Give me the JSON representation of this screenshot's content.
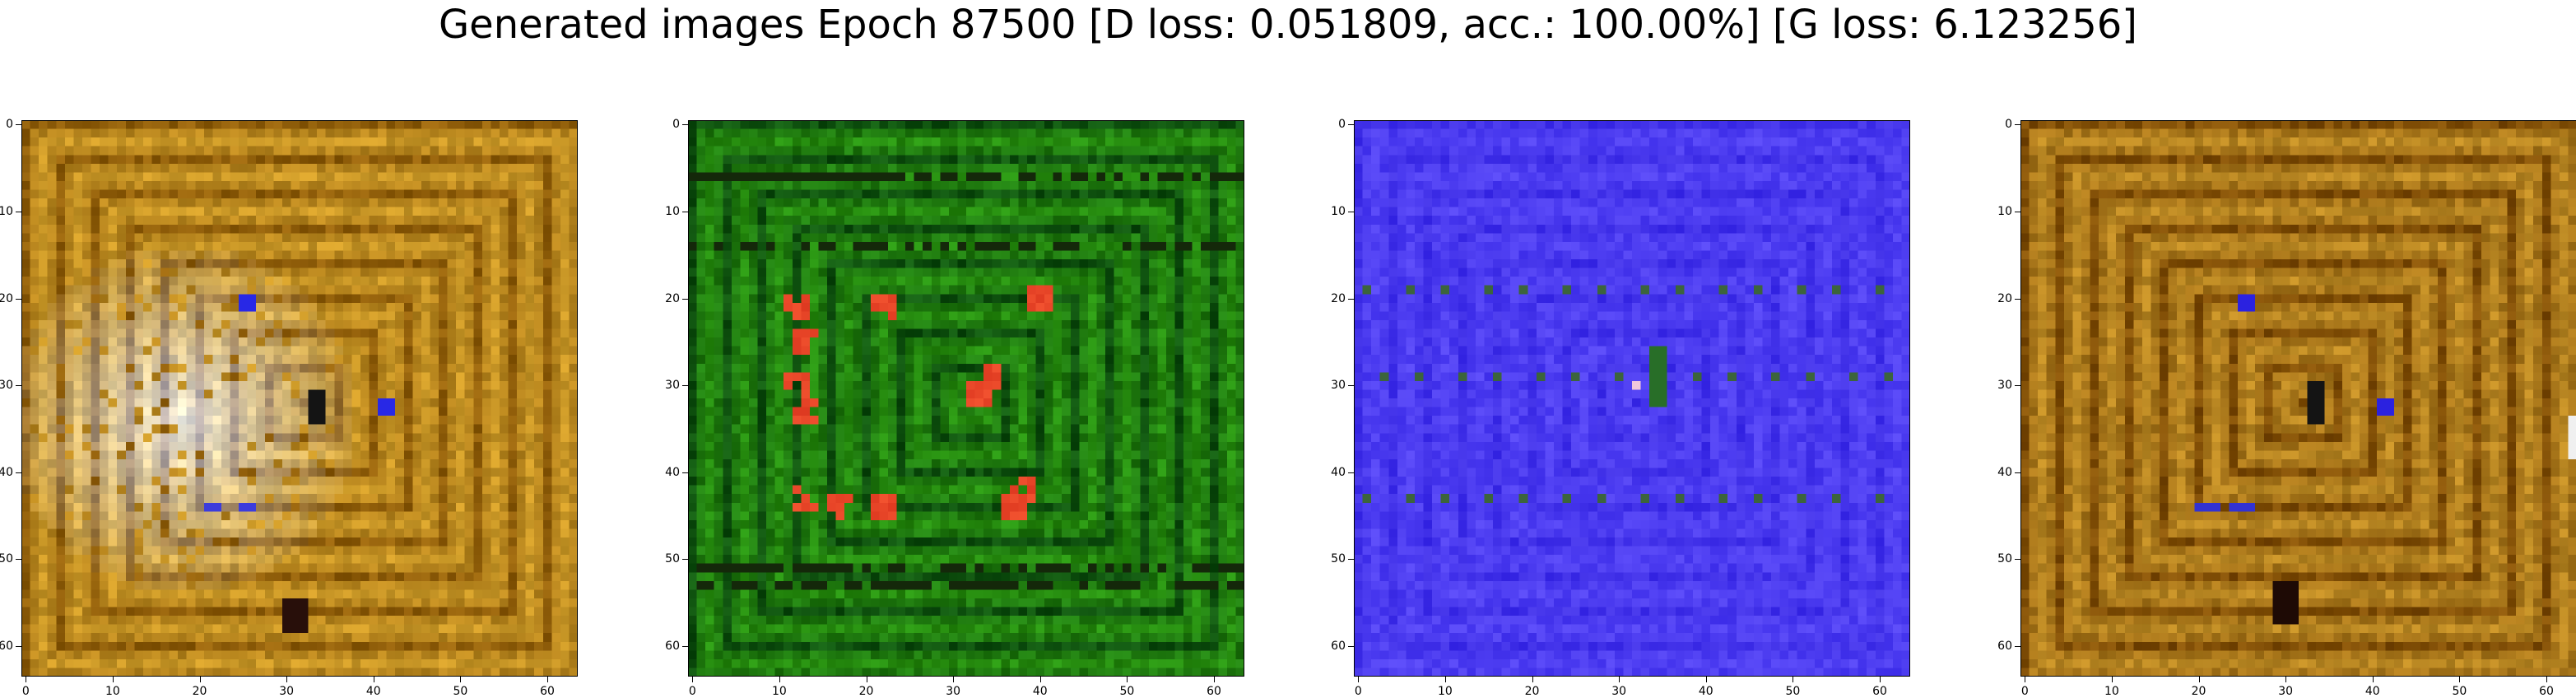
{
  "figure": {
    "title": "Generated images Epoch 87500 [D loss: 0.051809, acc.: 100.00%] [G loss: 6.123256]",
    "x_ticks": [
      "0",
      "10",
      "20",
      "30",
      "40",
      "50",
      "60"
    ],
    "y_ticks": [
      "0",
      "10",
      "20",
      "30",
      "40",
      "50",
      "60"
    ],
    "axis_range": [
      0,
      63
    ]
  },
  "panels": [
    {
      "id": "p1",
      "dominant_color": "gold-brown",
      "base": "#b8861e",
      "accent": "#e6e1d8"
    },
    {
      "id": "p2",
      "dominant_color": "green",
      "base": "#1f7a0f",
      "accent": "#e8452a"
    },
    {
      "id": "p3",
      "dominant_color": "blue-violet",
      "base": "#4c3cf0",
      "accent": "#2f6b2a"
    },
    {
      "id": "p4",
      "dominant_color": "gold-brown",
      "base": "#a8761a",
      "accent": "#2b22e0"
    }
  ]
}
